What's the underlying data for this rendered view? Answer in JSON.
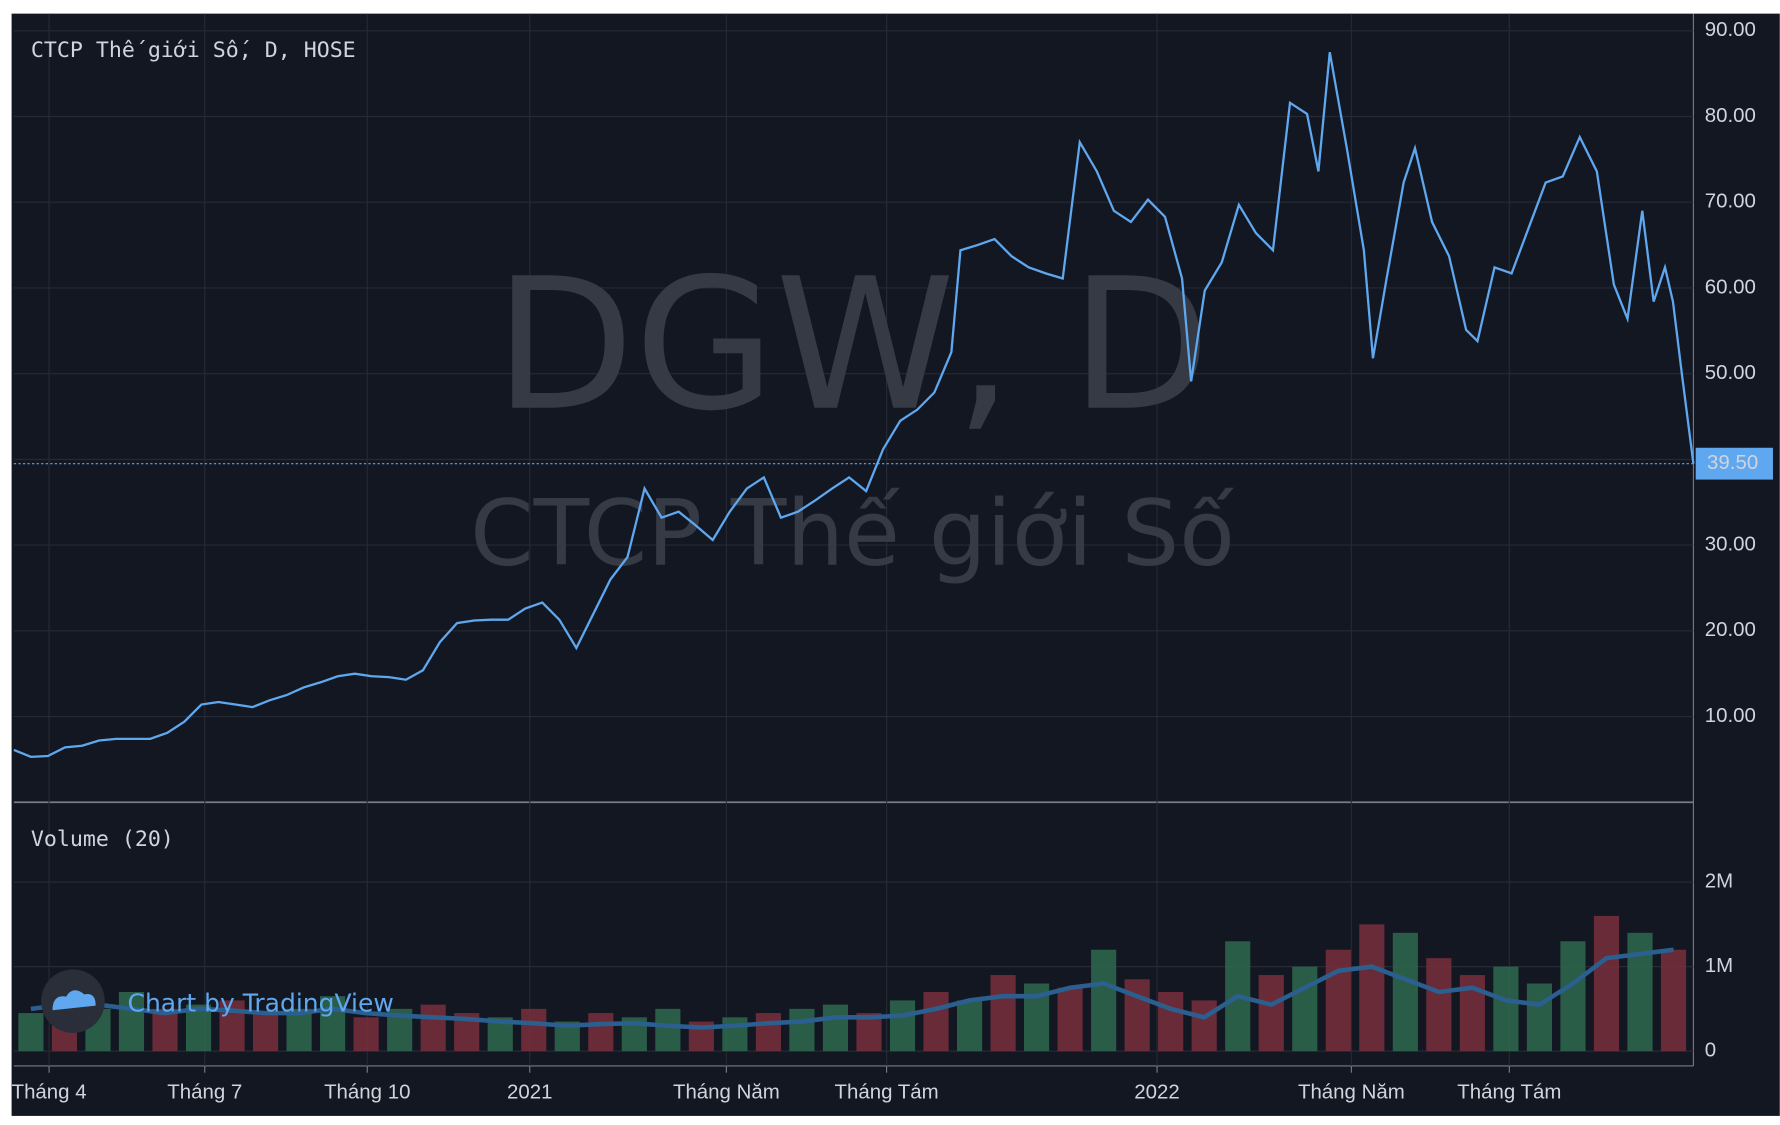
{
  "branding": "Chart by TradingView",
  "chart_data": [
    {
      "type": "line",
      "title": "CTCP Thế giới Số, D, HOSE",
      "watermark": "DGW, D",
      "watermark_subtitle": "CTCP Thế giới Số",
      "color": "#5fa8f0",
      "x": [
        0,
        15,
        30,
        45,
        60,
        75,
        90,
        105,
        120,
        135,
        150,
        165,
        180,
        195,
        210,
        225,
        240,
        255,
        270,
        285,
        300,
        315,
        330,
        345,
        360,
        375,
        390,
        405,
        420,
        435,
        450,
        465,
        480,
        495,
        510,
        525,
        540,
        555,
        570,
        585,
        600,
        615,
        630,
        645,
        660,
        675,
        690,
        705,
        720,
        735,
        750,
        765,
        780,
        795,
        810,
        825,
        833,
        848,
        863,
        878,
        893,
        908,
        923,
        938,
        953,
        968,
        983,
        998,
        1013,
        1028,
        1036,
        1048,
        1063,
        1078,
        1093,
        1108,
        1123,
        1138,
        1148,
        1158,
        1173,
        1188,
        1196,
        1208,
        1223,
        1233,
        1248,
        1263,
        1278,
        1288,
        1303,
        1318,
        1333,
        1348,
        1363,
        1378,
        1393,
        1408,
        1420,
        1433,
        1443,
        1453,
        1460,
        1468,
        1478
      ],
      "values": [
        6.1,
        5.3,
        5.4,
        6.4,
        6.6,
        7.2,
        7.4,
        7.4,
        7.4,
        8.1,
        9.4,
        11.4,
        11.7,
        11.4,
        11.1,
        11.9,
        12.5,
        13.4,
        14.0,
        14.7,
        15.0,
        14.7,
        14.6,
        14.3,
        15.4,
        18.7,
        20.9,
        21.2,
        21.3,
        21.3,
        22.6,
        23.3,
        21.3,
        18.0,
        22.0,
        26.0,
        28.6,
        36.6,
        33.2,
        33.9,
        32.3,
        30.6,
        33.9,
        36.6,
        37.9,
        33.2,
        33.9,
        35.2,
        36.6,
        37.9,
        36.3,
        41.2,
        44.5,
        45.8,
        47.8,
        52.5,
        64.4,
        65.0,
        65.7,
        63.7,
        62.4,
        61.7,
        61.1,
        77.0,
        73.6,
        69.0,
        67.7,
        70.3,
        68.3,
        61.1,
        49.1,
        59.7,
        63.0,
        69.7,
        66.4,
        64.4,
        81.6,
        80.3,
        73.6,
        87.5,
        76.3,
        64.4,
        51.8,
        61.1,
        72.3,
        76.3,
        67.7,
        63.7,
        55.1,
        53.8,
        62.4,
        61.7,
        67.0,
        72.3,
        73.0,
        77.6,
        73.6,
        60.4,
        56.4,
        69.0,
        58.4,
        62.4,
        58.4,
        49.8,
        39.5
      ],
      "last_price": {
        "value": 39.5,
        "label": "39.50"
      },
      "xlim": [
        0,
        1478
      ],
      "xticks": [
        {
          "value": 31,
          "label": "Tháng 4"
        },
        {
          "value": 168,
          "label": "Tháng 7"
        },
        {
          "value": 311,
          "label": "Tháng 10"
        },
        {
          "value": 454,
          "label": "2021"
        },
        {
          "value": 627,
          "label": "Tháng Năm"
        },
        {
          "value": 768,
          "label": "Tháng Tám"
        },
        {
          "value": 1006,
          "label": "2022"
        },
        {
          "value": 1177,
          "label": "Tháng Năm"
        },
        {
          "value": 1316,
          "label": "Tháng Tám"
        }
      ],
      "ylim": [
        0,
        92
      ],
      "yticks": [
        {
          "value": 10,
          "label": "10.00"
        },
        {
          "value": 20,
          "label": "20.00"
        },
        {
          "value": 30,
          "label": "30.00"
        },
        {
          "value": 40,
          "label": "40.00"
        },
        {
          "value": 50,
          "label": "50.00"
        },
        {
          "value": 60,
          "label": "60.00"
        },
        {
          "value": 70,
          "label": "70.00"
        },
        {
          "value": 80,
          "label": "80.00"
        },
        {
          "value": 90,
          "label": "90.00"
        }
      ],
      "grid": true
    },
    {
      "type": "bar",
      "title": "Volume (20)",
      "x": [
        15,
        44.5,
        74,
        103.5,
        133,
        162.5,
        192,
        221.5,
        251,
        280.5,
        310,
        339.5,
        369,
        398.5,
        428,
        457.5,
        487,
        516.5,
        546,
        575.5,
        605,
        634.5,
        664,
        693.5,
        723,
        752.5,
        782,
        811.5,
        841,
        870.5,
        900,
        929.5,
        959,
        988.5,
        1018,
        1047.5,
        1077,
        1106.5,
        1136,
        1165.5,
        1195,
        1224.5,
        1254,
        1283.5,
        1313,
        1342.5,
        1372,
        1401.5,
        1431,
        1460.5
      ],
      "values": [
        450000,
        600000,
        500000,
        700000,
        500000,
        550000,
        600000,
        450000,
        500000,
        650000,
        400000,
        500000,
        550000,
        450000,
        400000,
        500000,
        350000,
        450000,
        400000,
        500000,
        350000,
        400000,
        450000,
        500000,
        550000,
        450000,
        600000,
        700000,
        600000,
        900000,
        800000,
        750000,
        1200000,
        850000,
        700000,
        600000,
        1300000,
        900000,
        1000000,
        1200000,
        1500000,
        1400000,
        1100000,
        900000,
        1000000,
        800000,
        1300000,
        1600000,
        1400000,
        1200000
      ],
      "colors": [
        "#2f6a4f",
        "#7a2f3c",
        "#2f6a4f",
        "#2f6a4f",
        "#7a2f3c",
        "#2f6a4f",
        "#7a2f3c",
        "#7a2f3c",
        "#2f6a4f",
        "#2f6a4f",
        "#7a2f3c",
        "#2f6a4f",
        "#7a2f3c",
        "#7a2f3c",
        "#2f6a4f",
        "#7a2f3c",
        "#2f6a4f",
        "#7a2f3c",
        "#2f6a4f",
        "#2f6a4f",
        "#7a2f3c",
        "#2f6a4f",
        "#7a2f3c",
        "#2f6a4f",
        "#2f6a4f",
        "#7a2f3c",
        "#2f6a4f",
        "#7a2f3c",
        "#2f6a4f",
        "#7a2f3c",
        "#2f6a4f",
        "#7a2f3c",
        "#2f6a4f",
        "#7a2f3c",
        "#7a2f3c",
        "#7a2f3c",
        "#2f6a4f",
        "#7a2f3c",
        "#2f6a4f",
        "#7a2f3c",
        "#7a2f3c",
        "#2f6a4f",
        "#7a2f3c",
        "#7a2f3c",
        "#2f6a4f",
        "#2f6a4f",
        "#2f6a4f",
        "#7a2f3c",
        "#2f6a4f",
        "#7a2f3c"
      ],
      "ma": {
        "color": "#2b5f8f",
        "values": [
          500000,
          550000,
          550000,
          500000,
          450000,
          500000,
          480000,
          450000,
          450000,
          500000,
          450000,
          420000,
          400000,
          380000,
          350000,
          330000,
          300000,
          320000,
          330000,
          300000,
          280000,
          300000,
          330000,
          350000,
          400000,
          400000,
          420000,
          500000,
          600000,
          650000,
          650000,
          750000,
          800000,
          650000,
          500000,
          400000,
          650000,
          550000,
          750000,
          950000,
          1000000,
          850000,
          700000,
          750000,
          600000,
          550000,
          800000,
          1100000,
          1150000,
          1200000
        ]
      },
      "xlim": [
        0,
        1478
      ],
      "ylim": [
        -175000,
        2945000
      ],
      "yticks": [
        0,
        {
          "value": 1000000,
          "label": "1M"
        },
        {
          "value": 2000000,
          "label": "2M"
        }
      ],
      "grid": true
    }
  ]
}
